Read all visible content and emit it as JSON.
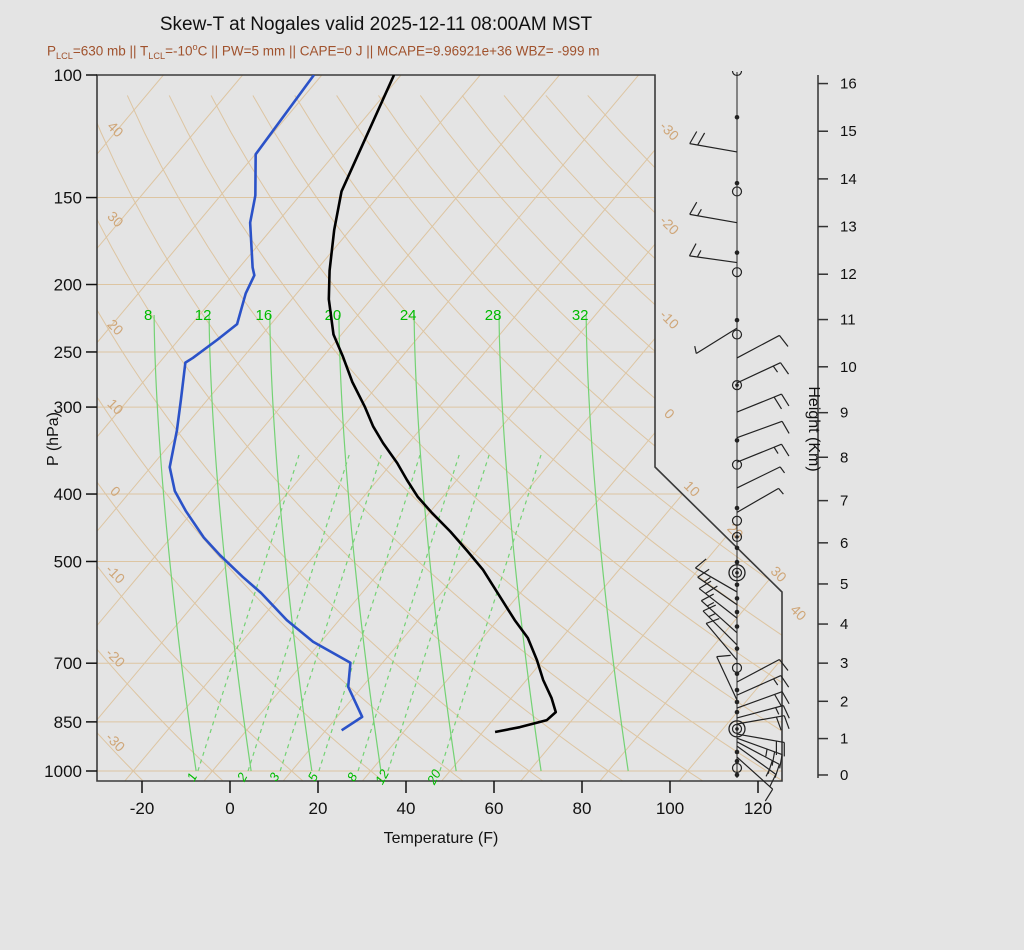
{
  "header": {
    "title": "Skew-T at Nogales valid 2025-12-11 08:00AM MST",
    "subtitle_color": "#a0522d",
    "subtitle_segments": [
      {
        "t": "P"
      },
      {
        "t": "LCL",
        "sub": true
      },
      {
        "t": "=630 mb || T"
      },
      {
        "t": "LCL",
        "sub": true
      },
      {
        "t": "=-10"
      },
      {
        "t": "o",
        "sup": true
      },
      {
        "t": "C || PW=5 mm || CAPE=0 J || MCAPE=9.96921e+36 WBZ= -999 m"
      }
    ]
  },
  "axes": {
    "pressure": {
      "label": "P (hPa)",
      "ticks": [
        100,
        150,
        200,
        250,
        300,
        400,
        500,
        700,
        850,
        1000
      ]
    },
    "temperature": {
      "label": "Temperature (F)",
      "ticks": [
        -20,
        0,
        20,
        40,
        60,
        80,
        100,
        120
      ]
    },
    "height": {
      "label": "Height (Km)",
      "ticks": [
        0,
        1,
        2,
        3,
        4,
        5,
        6,
        7,
        8,
        9,
        10,
        11,
        12,
        13,
        14,
        15,
        16
      ]
    }
  },
  "chart_data": {
    "type": "skew-t-log-p",
    "location": "Nogales",
    "valid": "2025-12-11 08:00AM MST",
    "parameters": {
      "p_lcl_mb": 630,
      "t_lcl_c": -10,
      "pw_mm": 5,
      "cape_j": 0,
      "mcape_j": "9.96921e+36",
      "wbz_m": -999
    },
    "pressure_range_hpa": [
      100,
      1000
    ],
    "temperature_axis_f": [
      -20,
      120
    ],
    "height_axis_km": [
      0,
      16
    ],
    "pressure_lines_hpa": [
      150,
      200,
      250,
      300,
      400,
      500,
      700,
      850,
      1000
    ],
    "isotherms_c": {
      "min": -120,
      "max": 40,
      "step": 10,
      "right_edge_labels": [
        -30,
        -20,
        -10,
        0
      ],
      "diagonal_labels": [
        10,
        20,
        30,
        40
      ]
    },
    "dry_adiabats_c": {
      "min": -30,
      "max": 160,
      "step": 10,
      "left_edge_labels": [
        40,
        30,
        20,
        10,
        0,
        -10,
        -20,
        -30
      ],
      "top_edge_labels": [
        50,
        60,
        70,
        80,
        90,
        100,
        110,
        120,
        130,
        140,
        150,
        160
      ]
    },
    "moist_adiabats_c": [
      {
        "label": 8,
        "t_f_surface": -7.7
      },
      {
        "label": 12,
        "t_f_surface": 4.8
      },
      {
        "label": 16,
        "t_f_surface": 18.6
      },
      {
        "label": 20,
        "t_f_surface": 34.3
      },
      {
        "label": 24,
        "t_f_surface": 51.4
      },
      {
        "label": 28,
        "t_f_surface": 70.7
      },
      {
        "label": 32,
        "t_f_surface": 90.5
      }
    ],
    "mixing_ratio_g_kg": [
      {
        "label": "1",
        "t_f_surface": -7.3
      },
      {
        "label": "2",
        "t_f_surface": 4.1
      },
      {
        "label": "3",
        "t_f_surface": 11.4
      },
      {
        "label": "5",
        "t_f_surface": 20.2
      },
      {
        "label": "8",
        "t_f_surface": 29.1
      },
      {
        "label": "12",
        "t_f_surface": 35.9
      },
      {
        "label": "20",
        "t_f_surface": 47.7
      }
    ],
    "temperature_profile": {
      "units": [
        "hPa",
        "F"
      ],
      "points": [
        [
          100,
          -95.6
        ],
        [
          147,
          -85.3
        ],
        [
          167,
          -79.6
        ],
        [
          191,
          -72.9
        ],
        [
          210,
          -67.6
        ],
        [
          236,
          -59.8
        ],
        [
          254,
          -53.4
        ],
        [
          276,
          -46.5
        ],
        [
          300,
          -38.8
        ],
        [
          320,
          -33.2
        ],
        [
          338,
          -27.8
        ],
        [
          361,
          -20.8
        ],
        [
          382,
          -15.3
        ],
        [
          404,
          -9.6
        ],
        [
          426,
          -3.3
        ],
        [
          453,
          4.4
        ],
        [
          482,
          11.7
        ],
        [
          514,
          19.1
        ],
        [
          568,
          29.2
        ],
        [
          607,
          35.9
        ],
        [
          644,
          42.3
        ],
        [
          693,
          48.6
        ],
        [
          740,
          53.8
        ],
        [
          786,
          59.2
        ],
        [
          823,
          62.8
        ],
        [
          845,
          62.3
        ],
        [
          865,
          57.5
        ],
        [
          879,
          52.8
        ]
      ]
    },
    "dewpoint_profile": {
      "units": [
        "hPa",
        "F"
      ],
      "points": [
        [
          100,
          -113.8
        ],
        [
          130,
          -111.9
        ],
        [
          149,
          -104.1
        ],
        [
          163,
          -100.1
        ],
        [
          189,
          -91.0
        ],
        [
          194,
          -89.1
        ],
        [
          206,
          -87.6
        ],
        [
          228,
          -83.7
        ],
        [
          240,
          -85.2
        ],
        [
          255,
          -87.3
        ],
        [
          259,
          -88.1
        ],
        [
          293,
          -82.0
        ],
        [
          324,
          -77.1
        ],
        [
          366,
          -71.7
        ],
        [
          396,
          -66.0
        ],
        [
          423,
          -59.7
        ],
        [
          462,
          -50.5
        ],
        [
          490,
          -43.4
        ],
        [
          526,
          -34.2
        ],
        [
          555,
          -26.9
        ],
        [
          607,
          -15.9
        ],
        [
          652,
          -5.8
        ],
        [
          699,
          6.7
        ],
        [
          757,
          10.8
        ],
        [
          836,
          19.7
        ],
        [
          874,
          17.6
        ]
      ]
    },
    "winds": [
      {
        "t": "semi",
        "p": 99
      },
      {
        "t": "dot",
        "p": 115
      },
      {
        "t": "barb",
        "p": 129,
        "ang": 170,
        "full": 2,
        "half": 0
      },
      {
        "t": "dot",
        "p": 143
      },
      {
        "t": "circ",
        "p": 147
      },
      {
        "t": "barb",
        "p": 163,
        "ang": 170,
        "full": 1,
        "half": 1
      },
      {
        "t": "dot",
        "p": 180
      },
      {
        "t": "barb",
        "p": 186,
        "ang": 172,
        "full": 1,
        "half": 1
      },
      {
        "t": "circ",
        "p": 192
      },
      {
        "t": "dot",
        "p": 225
      },
      {
        "t": "barb",
        "p": 231,
        "ang": 212,
        "full": 0,
        "half": 1
      },
      {
        "t": "circ",
        "p": 236
      },
      {
        "t": "barb",
        "p": 255,
        "ang": 28,
        "full": 1,
        "half": 0
      },
      {
        "t": "barb",
        "p": 277,
        "ang": 25,
        "full": 1,
        "half": 1
      },
      {
        "t": "dotcirc",
        "p": 279
      },
      {
        "t": "barb",
        "p": 305,
        "ang": 22,
        "full": 2,
        "half": 0
      },
      {
        "t": "barb",
        "p": 332,
        "ang": 20,
        "full": 1,
        "half": 0
      },
      {
        "t": "dot",
        "p": 335
      },
      {
        "t": "barb",
        "p": 360,
        "ang": 22,
        "full": 1,
        "half": 1
      },
      {
        "t": "circ",
        "p": 363
      },
      {
        "t": "barb",
        "p": 392,
        "ang": 26,
        "full": 0,
        "half": 1
      },
      {
        "t": "dot",
        "p": 419
      },
      {
        "t": "barb",
        "p": 425,
        "ang": 30,
        "full": 0,
        "half": 1
      },
      {
        "t": "circ",
        "p": 437
      },
      {
        "t": "dotcirc",
        "p": 461
      },
      {
        "t": "dot",
        "p": 478
      },
      {
        "t": "dot",
        "p": 501
      },
      {
        "t": "dblcirc",
        "p": 519
      },
      {
        "t": "dot",
        "p": 540
      },
      {
        "t": "barb",
        "p": 553,
        "ang": 150,
        "full": 1,
        "half": 0
      },
      {
        "t": "dot",
        "p": 565
      },
      {
        "t": "barb",
        "p": 577,
        "ang": 145,
        "full": 1,
        "half": 1
      },
      {
        "t": "dot",
        "p": 591
      },
      {
        "t": "barb",
        "p": 603,
        "ang": 142,
        "full": 2,
        "half": 0
      },
      {
        "t": "dot",
        "p": 620
      },
      {
        "t": "barb",
        "p": 633,
        "ang": 138,
        "full": 1,
        "half": 1
      },
      {
        "t": "barb",
        "p": 659,
        "ang": 135,
        "full": 1,
        "half": 1
      },
      {
        "t": "dot",
        "p": 667
      },
      {
        "t": "barb",
        "p": 693,
        "ang": 130,
        "full": 1,
        "half": 0
      },
      {
        "t": "circ",
        "p": 711
      },
      {
        "t": "dot",
        "p": 725
      },
      {
        "t": "barb",
        "p": 745,
        "ang": 28,
        "full": 1,
        "half": 0
      },
      {
        "t": "dot",
        "p": 765
      },
      {
        "t": "barb",
        "p": 778,
        "ang": 24,
        "full": 1,
        "half": 1
      },
      {
        "t": "barb",
        "p": 791,
        "ang": 115,
        "full": 1,
        "half": 0
      },
      {
        "t": "dot",
        "p": 796
      },
      {
        "t": "barb",
        "p": 812,
        "ang": 20,
        "full": 2,
        "half": 0
      },
      {
        "t": "dot",
        "p": 823
      },
      {
        "t": "barb",
        "p": 839,
        "ang": 15,
        "full": 1,
        "half": 1
      },
      {
        "t": "barb",
        "p": 856,
        "ang": 10,
        "full": 2,
        "half": 0
      },
      {
        "t": "dblcirc",
        "p": 870
      },
      {
        "t": "barb",
        "p": 885,
        "ang": -10,
        "full": 2,
        "half": 0
      },
      {
        "t": "barb",
        "p": 897,
        "ang": -20,
        "full": 2,
        "half": 1
      },
      {
        "t": "barb",
        "p": 908,
        "ang": -28,
        "full": 2,
        "half": 0
      },
      {
        "t": "barb",
        "p": 921,
        "ang": -36,
        "full": 1,
        "half": 1
      },
      {
        "t": "dot",
        "p": 939
      },
      {
        "t": "barb",
        "p": 955,
        "ang": -42,
        "full": 1,
        "half": 0
      },
      {
        "t": "dot",
        "p": 968
      },
      {
        "t": "circ",
        "p": 990
      },
      {
        "t": "dot",
        "p": 1013
      }
    ],
    "colors": {
      "background": "#e4e4e4",
      "tan_lines": "#ddc5a2",
      "tan_labels": "#cfa678",
      "green_lines": "#74d274",
      "green_labels": "#00bb00",
      "temperature_curve": "#000000",
      "dewpoint_curve": "#2b52c8",
      "frame": "#3a3a3a",
      "wind": "#222222"
    }
  }
}
